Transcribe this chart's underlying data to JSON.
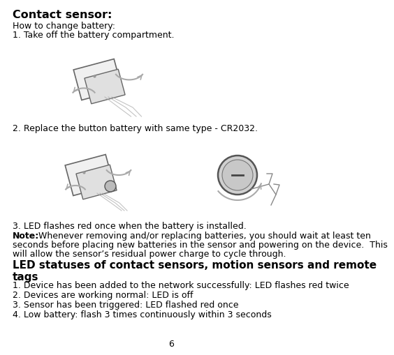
{
  "title": "Contact sensor:",
  "how_to": "How to change battery:",
  "step1": "1. Take off the battery compartment.",
  "step2": "2. Replace the button battery with same type - CR2032.",
  "step3": "3. LED flashes red once when the battery is installed.",
  "note_bold": "Note:",
  "note_line1": " Whenever removing and/or replacing batteries, you should wait at least ten",
  "note_line2": "seconds before placing new batteries in the sensor and powering on the device.  This",
  "note_line3": "will allow the sensor’s residual power charge to cycle through.",
  "section_title": "LED statuses of contact sensors, motion sensors and remote tags",
  "led1": "1. Device has been added to the network successfully: LED flashes red twice",
  "led2": "2. Devices are working normal: LED is off",
  "led3": "3. Sensor has been triggered: LED flashed red once",
  "led4": "4. Low battery: flash 3 times continuously within 3 seconds",
  "page_num": "6",
  "bg_color": "#ffffff",
  "text_color": "#000000",
  "img_color": "#c8c8c8",
  "img_edge": "#666666",
  "arrow_color": "#aaaaaa"
}
